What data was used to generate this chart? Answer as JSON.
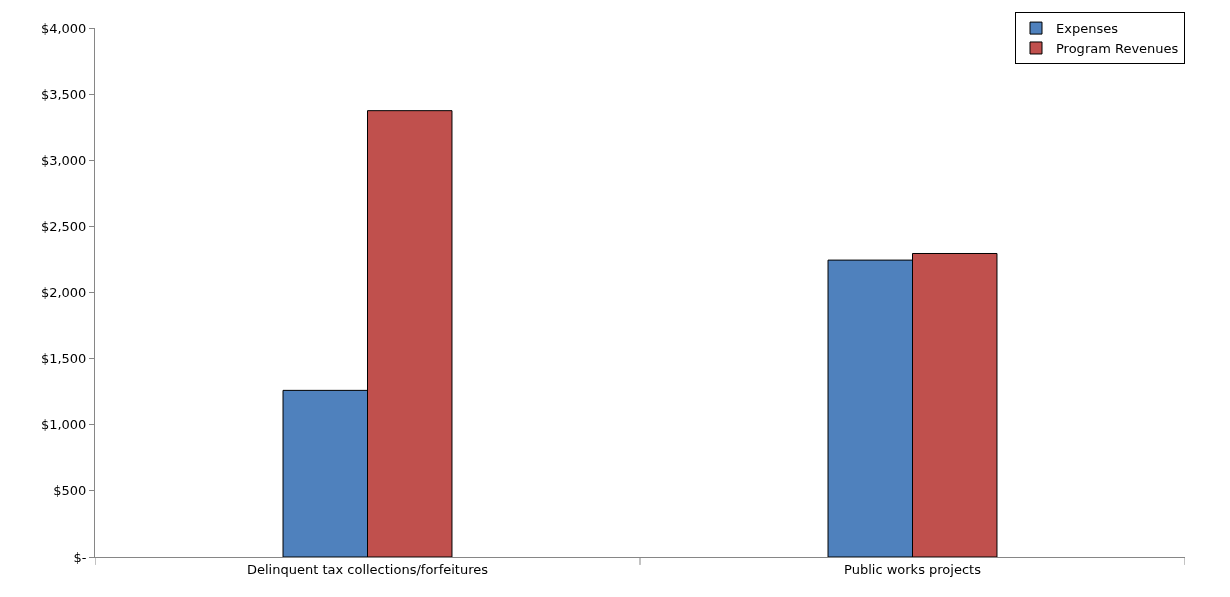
{
  "chart_data": {
    "type": "bar",
    "categories": [
      "Delinquent tax collections/forfeitures",
      "Public works projects"
    ],
    "series": [
      {
        "name": "Expenses",
        "color": "#4f81bd",
        "values": [
          1260,
          2245
        ]
      },
      {
        "name": "Program Revenues",
        "color": "#c0504d",
        "values": [
          3375,
          2295
        ]
      }
    ],
    "ylim": [
      0,
      4000
    ],
    "yticks": [
      {
        "value": 0,
        "label": "$-"
      },
      {
        "value": 500,
        "label": "$500"
      },
      {
        "value": 1000,
        "label": "$1,000"
      },
      {
        "value": 1500,
        "label": "$1,500"
      },
      {
        "value": 2000,
        "label": "$2,000"
      },
      {
        "value": 2500,
        "label": "$2,500"
      },
      {
        "value": 3000,
        "label": "$3,000"
      },
      {
        "value": 3500,
        "label": "$3,500"
      },
      {
        "value": 4000,
        "label": "$4,000"
      }
    ],
    "legend": "top right"
  }
}
